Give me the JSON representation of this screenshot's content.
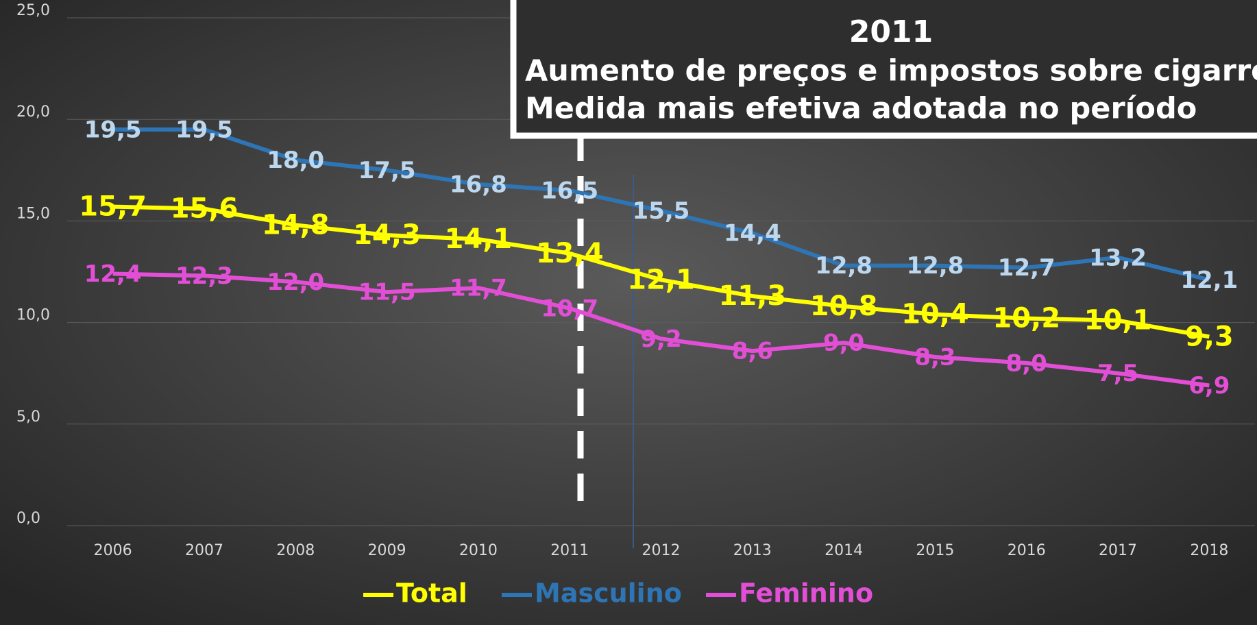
{
  "chart_data": {
    "type": "line",
    "categories": [
      "2006",
      "2007",
      "2008",
      "2009",
      "2010",
      "2011",
      "2012",
      "2013",
      "2014",
      "2015",
      "2016",
      "2017",
      "2018"
    ],
    "series": [
      {
        "name": "Total",
        "color": "#ffff00",
        "label_color": "#ffff00",
        "values": [
          15.7,
          15.6,
          14.8,
          14.3,
          14.1,
          13.4,
          12.1,
          11.3,
          10.8,
          10.4,
          10.2,
          10.1,
          9.3
        ],
        "value_labels": [
          "15,7",
          "15,6",
          "14,8",
          "14,3",
          "14,1",
          "13,4",
          "12,1",
          "11,3",
          "10,8",
          "10,4",
          "10,2",
          "10,1",
          "9,3"
        ]
      },
      {
        "name": "Masculino",
        "color": "#2e75b6",
        "label_color": "#bdd7ee",
        "values": [
          19.5,
          19.5,
          18.0,
          17.5,
          16.8,
          16.5,
          15.5,
          14.4,
          12.8,
          12.8,
          12.7,
          13.2,
          12.1
        ],
        "value_labels": [
          "19,5",
          "19,5",
          "18,0",
          "17,5",
          "16,8",
          "16,5",
          "15,5",
          "14,4",
          "12,8",
          "12,8",
          "12,7",
          "13,2",
          "12,1"
        ]
      },
      {
        "name": "Feminino",
        "color": "#e24fd6",
        "label_color": "#e24fd6",
        "values": [
          12.4,
          12.3,
          12.0,
          11.5,
          11.7,
          10.7,
          9.2,
          8.6,
          9.0,
          8.3,
          8.0,
          7.5,
          6.9
        ],
        "value_labels": [
          "12,4",
          "12,3",
          "12,0",
          "11,5",
          "11,7",
          "10,7",
          "9,2",
          "8,6",
          "9,0",
          "8,3",
          "8,0",
          "7,5",
          "6,9"
        ]
      }
    ],
    "ylim": [
      0,
      25
    ],
    "yticks": [
      {
        "value": 0,
        "label": "0,0"
      },
      {
        "value": 5,
        "label": "5,0"
      },
      {
        "value": 10,
        "label": "10,0"
      },
      {
        "value": 15,
        "label": "15,0"
      },
      {
        "value": 20,
        "label": "20,0"
      },
      {
        "value": 25,
        "label": "25,0"
      }
    ],
    "grid": true,
    "legend": "bottom",
    "annotation": {
      "year": "2011",
      "lines": [
        "Aumento de preços e impostos sobre cigarros",
        "Medida mais efetiva adotada no período"
      ]
    }
  }
}
